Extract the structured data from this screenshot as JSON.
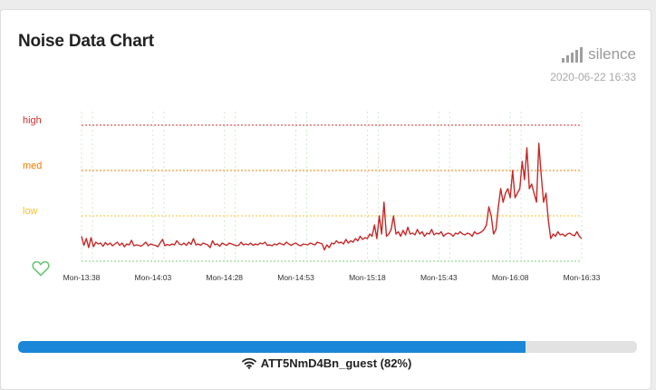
{
  "card": {
    "title": "Noise Data Chart",
    "status_label": "silence",
    "status_icon": "signal-bars-icon",
    "timestamp": "2020-06-22 16:33"
  },
  "chart_data": {
    "type": "line",
    "threshold_lines": [
      {
        "label": "high",
        "value": 3,
        "color": "#d32f2f"
      },
      {
        "label": "med",
        "value": 2,
        "color": "#f57c00"
      },
      {
        "label": "low",
        "value": 1,
        "color": "#fbc02d"
      }
    ],
    "x_tick_labels": [
      "Mon-13:38",
      "Mon-14:03",
      "Mon-14:28",
      "Mon-14:53",
      "Mon-15:18",
      "Mon-15:43",
      "Mon-16:08",
      "Mon-16:33"
    ],
    "x_range_minutes": [
      0,
      175
    ],
    "ylim": [
      0,
      3.5
    ],
    "grid": true,
    "series_color": "#c62828",
    "values": [
      0.55,
      0.35,
      0.5,
      0.3,
      0.52,
      0.32,
      0.42,
      0.38,
      0.4,
      0.33,
      0.41,
      0.36,
      0.4,
      0.34,
      0.38,
      0.42,
      0.35,
      0.4,
      0.32,
      0.38,
      0.36,
      0.46,
      0.34,
      0.36,
      0.35,
      0.33,
      0.37,
      0.42,
      0.34,
      0.38,
      0.36,
      0.35,
      0.32,
      0.4,
      0.48,
      0.34,
      0.37,
      0.35,
      0.38,
      0.36,
      0.45,
      0.38,
      0.36,
      0.4,
      0.35,
      0.42,
      0.37,
      0.5,
      0.36,
      0.38,
      0.35,
      0.4,
      0.38,
      0.36,
      0.3,
      0.45,
      0.36,
      0.38,
      0.33,
      0.4,
      0.37,
      0.35,
      0.4,
      0.38,
      0.36,
      0.34,
      0.35,
      0.42,
      0.36,
      0.38,
      0.36,
      0.4,
      0.35,
      0.38,
      0.36,
      0.4,
      0.38,
      0.42,
      0.35,
      0.36,
      0.34,
      0.38,
      0.36,
      0.4,
      0.38,
      0.36,
      0.42,
      0.38,
      0.35,
      0.38,
      0.4,
      0.36,
      0.34,
      0.38,
      0.37,
      0.36,
      0.4,
      0.38,
      0.36,
      0.42,
      0.4,
      0.38,
      0.25,
      0.36,
      0.3,
      0.4,
      0.38,
      0.45,
      0.4,
      0.42,
      0.38,
      0.48,
      0.4,
      0.45,
      0.42,
      0.5,
      0.45,
      0.55,
      0.48,
      0.52,
      0.5,
      0.6,
      0.55,
      0.8,
      0.5,
      1.0,
      0.6,
      1.3,
      0.55,
      0.6,
      0.7,
      1.0,
      0.6,
      0.65,
      0.55,
      0.68,
      0.58,
      0.75,
      0.6,
      0.62,
      0.58,
      0.7,
      0.6,
      0.65,
      0.55,
      0.62,
      0.6,
      0.7,
      0.58,
      0.62,
      0.6,
      0.65,
      0.55,
      0.6,
      0.62,
      0.6,
      0.55,
      0.62,
      0.6,
      0.65,
      0.6,
      0.58,
      0.62,
      0.6,
      0.55,
      0.65,
      0.6,
      0.62,
      0.65,
      0.7,
      0.8,
      1.2,
      1.0,
      0.6,
      0.7,
      1.2,
      1.6,
      1.3,
      1.5,
      1.6,
      1.4,
      2.0,
      1.4,
      1.5,
      1.6,
      2.2,
      1.8,
      2.5,
      1.6,
      1.7,
      1.5,
      1.3,
      2.6,
      1.9,
      1.3,
      1.5,
      0.9,
      0.5,
      0.6,
      0.55,
      0.65,
      0.58,
      0.6,
      0.55,
      0.6,
      0.62,
      0.58,
      0.56,
      0.65,
      0.55,
      0.5
    ]
  },
  "progress": {
    "value": 0.82,
    "fill_color": "#1a86d8"
  },
  "wifi": {
    "icon": "wifi-icon",
    "label": "ATT5NmD4Bn_guest (82%)"
  },
  "heart_icon": "heart-icon"
}
